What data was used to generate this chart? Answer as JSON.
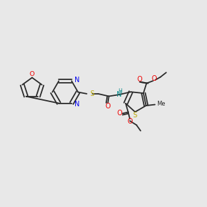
{
  "bg_color": "#e8e8e8",
  "bond_color": "#2a2a2a",
  "N_color": "#0000ee",
  "O_color": "#ee0000",
  "S_color": "#bbaa00",
  "NH_color": "#008888",
  "figsize": [
    3.0,
    3.0
  ],
  "dpi": 100,
  "xlim": [
    0,
    10
  ],
  "ylim": [
    0,
    10
  ]
}
